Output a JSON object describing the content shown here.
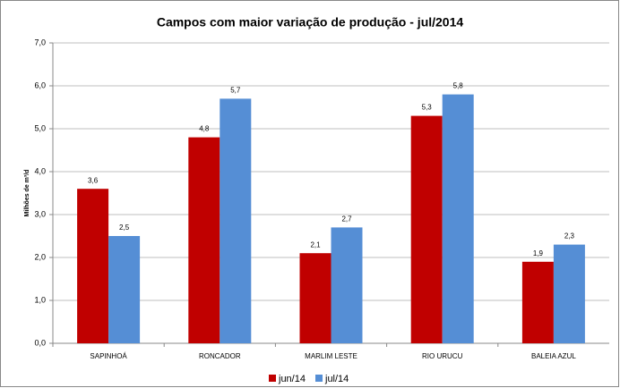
{
  "chart_data": {
    "type": "bar",
    "title": "Campos com maior variação de produção - jul/2014",
    "y_label": "Milhões de m³/d",
    "categories": [
      "SAPINHOÁ",
      "RONCADOR",
      "MARLIM LESTE",
      "RIO URUCU",
      "BALEIA AZUL"
    ],
    "series": [
      {
        "name": "jun/14",
        "color": "#c00000",
        "values": [
          3.6,
          4.8,
          2.1,
          5.3,
          1.9
        ],
        "value_labels": [
          "3,6",
          "4,8",
          "2,1",
          "5,3",
          "1,9"
        ]
      },
      {
        "name": "jul/14",
        "color": "#558ed5",
        "values": [
          2.5,
          5.7,
          2.7,
          5.8,
          2.3
        ],
        "value_labels": [
          "2,5",
          "5,7",
          "2,7",
          "5,8",
          "2,3"
        ]
      }
    ],
    "ylim": [
      0,
      7
    ],
    "yticks": [
      {
        "value": 0,
        "label": "0,0"
      },
      {
        "value": 1,
        "label": "1,0"
      },
      {
        "value": 2,
        "label": "2,0"
      },
      {
        "value": 3,
        "label": "3,0"
      },
      {
        "value": 4,
        "label": "4,0"
      },
      {
        "value": 5,
        "label": "5,0"
      },
      {
        "value": 6,
        "label": "6,0"
      },
      {
        "value": 7,
        "label": "7,0"
      }
    ],
    "grid": true,
    "legend": "bottom"
  }
}
